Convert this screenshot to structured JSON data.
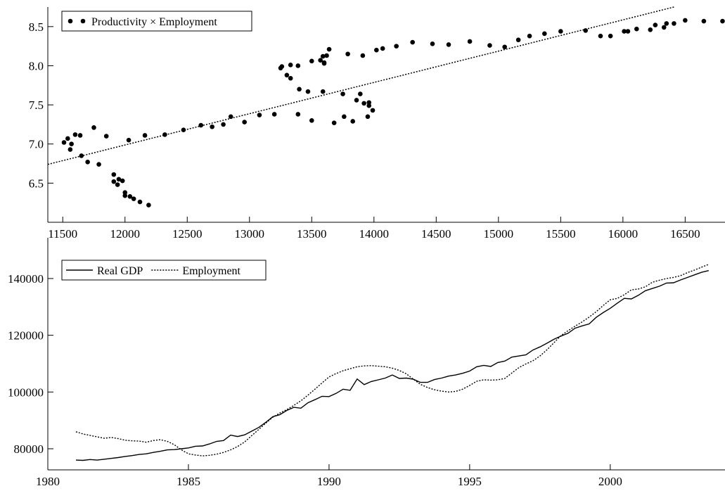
{
  "chart_data": [
    {
      "type": "scatter",
      "series": [
        {
          "name": "Productivity × Employment",
          "color": "#000000",
          "x": [
            11510,
            11540,
            11560,
            11570,
            11600,
            11640,
            11650,
            11700,
            11750,
            11790,
            11850,
            11910,
            11910,
            11940,
            11950,
            11980,
            12000,
            12000,
            12040,
            12070,
            12120,
            12190,
            12030,
            12160,
            12320,
            12470,
            12610,
            12700,
            12790,
            12850,
            12960,
            13080,
            13200,
            13250,
            13260,
            13300,
            13330,
            13330,
            13390,
            13400,
            13390,
            13470,
            13500,
            13500,
            13570,
            13590,
            13600,
            13600,
            13620,
            13640,
            13590,
            13680,
            13750,
            13760,
            13790,
            13830,
            13860,
            13890,
            13910,
            13920,
            13950,
            13960,
            13960,
            13990,
            14020,
            14070,
            14180,
            14310,
            14470,
            14600,
            14770,
            14930,
            15050,
            15160,
            15250,
            15370,
            15500,
            15700,
            15820,
            15900,
            16010,
            16040,
            16110,
            16220,
            16260,
            16330,
            16350,
            16410,
            16500,
            16650,
            16800
          ],
          "values": [
            7.02,
            7.07,
            6.93,
            7.0,
            7.12,
            7.11,
            6.85,
            6.77,
            7.21,
            6.74,
            7.1,
            6.61,
            6.52,
            6.48,
            6.55,
            6.53,
            6.38,
            6.34,
            6.33,
            6.3,
            6.26,
            6.22,
            7.05,
            7.11,
            7.12,
            7.18,
            7.24,
            7.22,
            7.25,
            7.35,
            7.28,
            7.37,
            7.38,
            7.97,
            7.99,
            7.88,
            8.01,
            7.84,
            8.0,
            7.7,
            7.38,
            7.67,
            8.06,
            7.3,
            8.07,
            8.12,
            8.04,
            8.03,
            8.13,
            8.21,
            7.67,
            7.27,
            7.64,
            7.35,
            8.15,
            7.29,
            7.56,
            7.64,
            8.13,
            7.52,
            7.35,
            7.53,
            7.49,
            7.43,
            8.2,
            8.22,
            8.25,
            8.3,
            8.28,
            8.27,
            8.31,
            8.26,
            8.24,
            8.33,
            8.38,
            8.41,
            8.44,
            8.45,
            8.38,
            8.38,
            8.44,
            8.44,
            8.47,
            8.46,
            8.52,
            8.49,
            8.54,
            8.54,
            8.58,
            8.57,
            8.57
          ]
        }
      ],
      "fit_line": {
        "color": "#000000",
        "style": "dotted",
        "x": [
          11380,
          16410
        ],
        "values": [
          6.74,
          8.75
        ]
      },
      "xlim": [
        11380,
        16820
      ],
      "ylim": [
        6.0,
        8.75
      ],
      "xticks": [
        11500,
        12000,
        12500,
        13000,
        13500,
        14000,
        14500,
        15000,
        15500,
        16000,
        16500
      ],
      "yticks": [
        6.5,
        {
          "value": 7,
          "label": "7.0"
        },
        7.5,
        {
          "value": 8,
          "label": "8.0"
        },
        8.5
      ],
      "legend": "top-left"
    },
    {
      "type": "line",
      "x": [
        1981,
        1981.25,
        1981.5,
        1981.75,
        1982,
        1982.25,
        1982.5,
        1982.75,
        1983,
        1983.25,
        1983.5,
        1983.75,
        1984,
        1984.25,
        1984.5,
        1984.75,
        1985,
        1985.25,
        1985.5,
        1985.75,
        1986,
        1986.25,
        1986.5,
        1986.75,
        1987,
        1987.25,
        1987.5,
        1987.75,
        1988,
        1988.25,
        1988.5,
        1988.75,
        1989,
        1989.25,
        1989.5,
        1989.75,
        1990,
        1990.25,
        1990.5,
        1990.75,
        1991,
        1991.25,
        1991.5,
        1991.75,
        1992,
        1992.25,
        1992.5,
        1992.75,
        1993,
        1993.25,
        1993.5,
        1993.75,
        1994,
        1994.25,
        1994.5,
        1994.75,
        1995,
        1995.25,
        1995.5,
        1995.75,
        1996,
        1996.25,
        1996.5,
        1996.75,
        1997,
        1997.25,
        1997.5,
        1997.75,
        1998,
        1998.25,
        1998.5,
        1998.75,
        1999,
        1999.25,
        1999.5,
        1999.75,
        2000,
        2000.25,
        2000.5,
        2000.75,
        2001,
        2001.25,
        2001.5,
        2001.75,
        2002,
        2002.25,
        2002.5,
        2002.75,
        2003,
        2003.25,
        2003.5
      ],
      "series": [
        {
          "name": "Real GDP",
          "color": "#000000",
          "style": "solid",
          "values": [
            76000,
            75900,
            76200,
            76000,
            76300,
            76600,
            76900,
            77300,
            77600,
            78000,
            78200,
            78700,
            79100,
            79600,
            79700,
            80000,
            80300,
            80900,
            81000,
            81700,
            82600,
            82900,
            84800,
            84300,
            84900,
            86200,
            87500,
            89300,
            91300,
            92000,
            93500,
            94600,
            94300,
            96200,
            97300,
            98500,
            98400,
            99500,
            101000,
            100600,
            104600,
            102600,
            103700,
            104300,
            104900,
            106000,
            104800,
            104900,
            104500,
            103400,
            103400,
            104400,
            104900,
            105600,
            106000,
            106600,
            107400,
            108900,
            109400,
            109000,
            110400,
            110900,
            112300,
            112700,
            113100,
            114800,
            115900,
            117200,
            118600,
            119700,
            120700,
            122500,
            123300,
            124000,
            126300,
            128000,
            129500,
            131300,
            133000,
            132800,
            134100,
            135700,
            136500,
            137300,
            138400,
            138500,
            139500,
            140400,
            141300,
            142200,
            142800
          ]
        },
        {
          "name": "Employment",
          "color": "#000000",
          "style": "dotted",
          "values": [
            86000,
            85200,
            84700,
            84200,
            83700,
            84000,
            83600,
            83000,
            82800,
            82700,
            82300,
            82900,
            83200,
            82600,
            81400,
            79600,
            78200,
            77800,
            77500,
            77700,
            78100,
            78700,
            79600,
            80800,
            82400,
            84600,
            86800,
            89000,
            91100,
            92600,
            93800,
            95300,
            96900,
            98900,
            101000,
            103200,
            105300,
            106500,
            107500,
            108200,
            108900,
            109200,
            109300,
            109100,
            108900,
            108400,
            107600,
            106400,
            104500,
            102700,
            101600,
            100800,
            100300,
            100000,
            100200,
            101000,
            102300,
            103800,
            104300,
            104200,
            104300,
            104800,
            106700,
            108600,
            109900,
            111000,
            112700,
            114900,
            117400,
            119900,
            121600,
            123200,
            124700,
            126400,
            128300,
            130500,
            132500,
            133000,
            134300,
            136000,
            136300,
            137100,
            138700,
            139400,
            140000,
            140400,
            141000,
            142100,
            143000,
            144000,
            145000
          ]
        }
      ],
      "xlim": [
        1980,
        2004.08
      ],
      "ylim": [
        72560,
        154370
      ],
      "xticks": [
        1980,
        1985,
        1990,
        1995,
        2000
      ],
      "yticks": [
        80000,
        100000,
        120000,
        140000
      ],
      "legend": "top-left"
    }
  ]
}
